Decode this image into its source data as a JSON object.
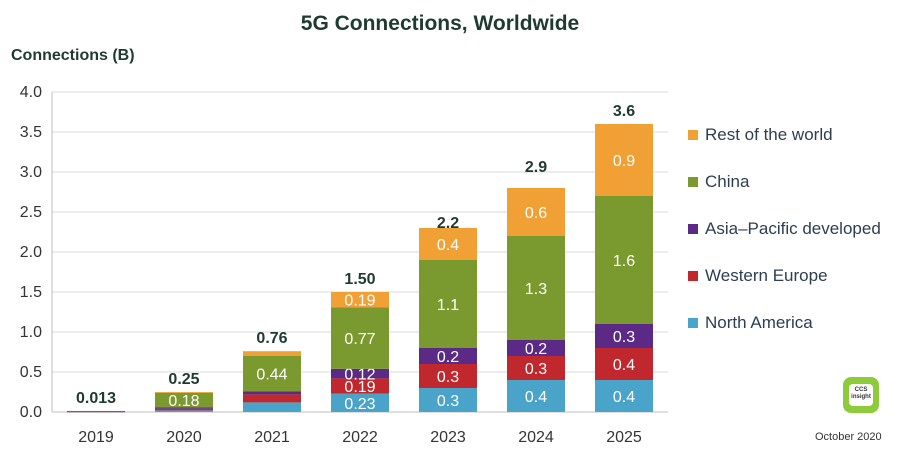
{
  "chart_data": {
    "type": "bar",
    "stacked": true,
    "title": "5G Connections, Worldwide",
    "ylabel": "Connections (B)",
    "xlabel": "",
    "ylim": [
      0,
      4.0
    ],
    "yticks": [
      "0.0",
      "0.5",
      "1.0",
      "1.5",
      "2.0",
      "2.5",
      "3.0",
      "3.5",
      "4.0"
    ],
    "grid": true,
    "legend_position": "right",
    "categories": [
      "2019",
      "2020",
      "2021",
      "2022",
      "2023",
      "2024",
      "2025"
    ],
    "totals": [
      "0.013",
      "0.25",
      "0.76",
      "1.50",
      "2.2",
      "2.9",
      "3.6"
    ],
    "series": [
      {
        "name": "North America",
        "color": "#4aa3c8",
        "values": [
          0.003,
          0.02,
          0.12,
          0.23,
          0.3,
          0.4,
          0.4
        ],
        "labels": [
          "",
          "",
          "",
          "0.23",
          "0.3",
          "0.4",
          "0.4"
        ]
      },
      {
        "name": "Western Europe",
        "color": "#c0282d",
        "values": [
          0.002,
          0.02,
          0.1,
          0.19,
          0.3,
          0.3,
          0.4
        ],
        "labels": [
          "",
          "",
          "",
          "0.19",
          "0.3",
          "0.3",
          "0.4"
        ]
      },
      {
        "name": "Asia–Pacific developed",
        "color": "#5b2a86",
        "values": [
          0.003,
          0.02,
          0.04,
          0.12,
          0.2,
          0.2,
          0.3
        ],
        "labels": [
          "",
          "",
          "",
          "0.12",
          "0.2",
          "0.2",
          "0.3"
        ]
      },
      {
        "name": "China",
        "color": "#7a9a2f",
        "values": [
          0.005,
          0.18,
          0.44,
          0.77,
          1.1,
          1.3,
          1.6
        ],
        "labels": [
          "",
          "0.18",
          "0.44",
          "0.77",
          "1.1",
          "1.3",
          "1.6"
        ]
      },
      {
        "name": "Rest of the world",
        "color": "#f0a035",
        "values": [
          0.0,
          0.01,
          0.06,
          0.19,
          0.4,
          0.6,
          0.9
        ],
        "labels": [
          "",
          "",
          "",
          "0.19",
          "0.4",
          "0.6",
          "0.9"
        ]
      }
    ],
    "legend_order": [
      "Rest of the world",
      "China",
      "Asia–Pacific developed",
      "Western Europe",
      "North America"
    ]
  },
  "logo_text": "CCS Insight",
  "footer_date": "October 2020"
}
